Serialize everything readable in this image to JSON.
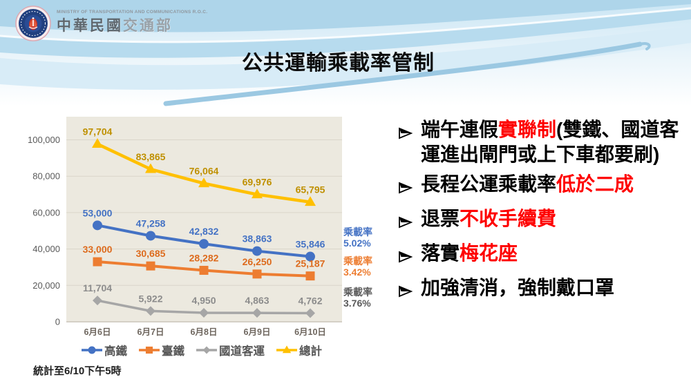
{
  "slide": {
    "logo": {
      "agency_en": "MINISTRY OF TRANSPORTATION AND COMMUNICATIONS R.O.C.",
      "agency_zh_dark": "中華民國",
      "agency_zh_light": "交通部"
    },
    "title": "公共運輸乘載率管制",
    "footer": "統計至6/10下午5時"
  },
  "bullets": [
    {
      "segments": [
        {
          "t": "端午連假",
          "red": false
        },
        {
          "t": "實聯制",
          "red": true
        },
        {
          "t": "(雙鐵、國道客運進出閘門或上下車都要刷)",
          "red": false
        }
      ]
    },
    {
      "segments": [
        {
          "t": "長程公運乘載率",
          "red": false
        },
        {
          "t": "低於二成",
          "red": true
        }
      ]
    },
    {
      "segments": [
        {
          "t": "退票",
          "red": false
        },
        {
          "t": "不收手續費",
          "red": true
        }
      ]
    },
    {
      "segments": [
        {
          "t": "落實",
          "red": false
        },
        {
          "t": "梅花座",
          "red": true
        }
      ]
    },
    {
      "segments": [
        {
          "t": "加強清消，強制戴口罩",
          "red": false
        }
      ]
    }
  ],
  "chart_data": {
    "type": "line",
    "title": "",
    "categories": [
      "6月6日",
      "6月7日",
      "6月8日",
      "6月9日",
      "6月10日"
    ],
    "y_ticks": [
      0,
      20000,
      40000,
      60000,
      80000,
      100000
    ],
    "ylim": [
      0,
      112000
    ],
    "grid": true,
    "legend_position": "bottom",
    "plot_background": "#ECE9DF",
    "series": [
      {
        "name": "高鐵",
        "marker": "circle",
        "color": "#4472C4",
        "label_color": "#4472C4",
        "values": [
          53000,
          47258,
          42832,
          38863,
          35846
        ]
      },
      {
        "name": "臺鐵",
        "marker": "square",
        "color": "#ED7D31",
        "label_color": "#DD6B1D",
        "values": [
          33000,
          30685,
          28282,
          26250,
          25187
        ]
      },
      {
        "name": "國道客運",
        "marker": "diamond",
        "color": "#A6A6A6",
        "label_color": "#8C8C8C",
        "values": [
          11704,
          5922,
          4950,
          4863,
          4762
        ]
      },
      {
        "name": "總計",
        "marker": "triangle",
        "color": "#FFC000",
        "label_color": "#BF9000",
        "values": [
          97704,
          83865,
          76064,
          69976,
          65795
        ]
      }
    ],
    "annotations": [
      {
        "label": "乘載率",
        "value": "5.02%",
        "color": "#4472C4"
      },
      {
        "label": "乘載率",
        "value": "3.42%",
        "color": "#ED7D31"
      },
      {
        "label": "乘載率",
        "value": "3.76%",
        "color": "#595959"
      }
    ]
  }
}
